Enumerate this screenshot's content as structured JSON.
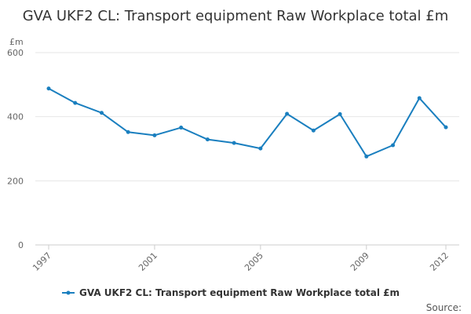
{
  "chart_data": {
    "type": "line",
    "title": "GVA UKF2 CL: Transport equipment Raw Workplace total £m",
    "unit_label": "£m",
    "xlabel": "",
    "ylabel": "",
    "ylim": [
      0,
      600
    ],
    "y_ticks": [
      0,
      200,
      400,
      600
    ],
    "x_tick_labels": [
      "1997",
      "2001",
      "2005",
      "2009",
      "2012"
    ],
    "x": [
      1997,
      1998,
      1999,
      2000,
      2001,
      2002,
      2003,
      2004,
      2005,
      2006,
      2007,
      2008,
      2009,
      2010,
      2011,
      2012
    ],
    "series": [
      {
        "name": "GVA UKF2 CL: Transport equipment Raw Workplace total £m",
        "values": [
          488,
          443,
          412,
          352,
          342,
          366,
          329,
          318,
          301,
          409,
          357,
          408,
          276,
          311,
          458,
          367
        ],
        "color": "#1a7fbf"
      }
    ],
    "grid": true,
    "legend_position": "bottom"
  },
  "footer": {
    "source_label": "Source:"
  }
}
